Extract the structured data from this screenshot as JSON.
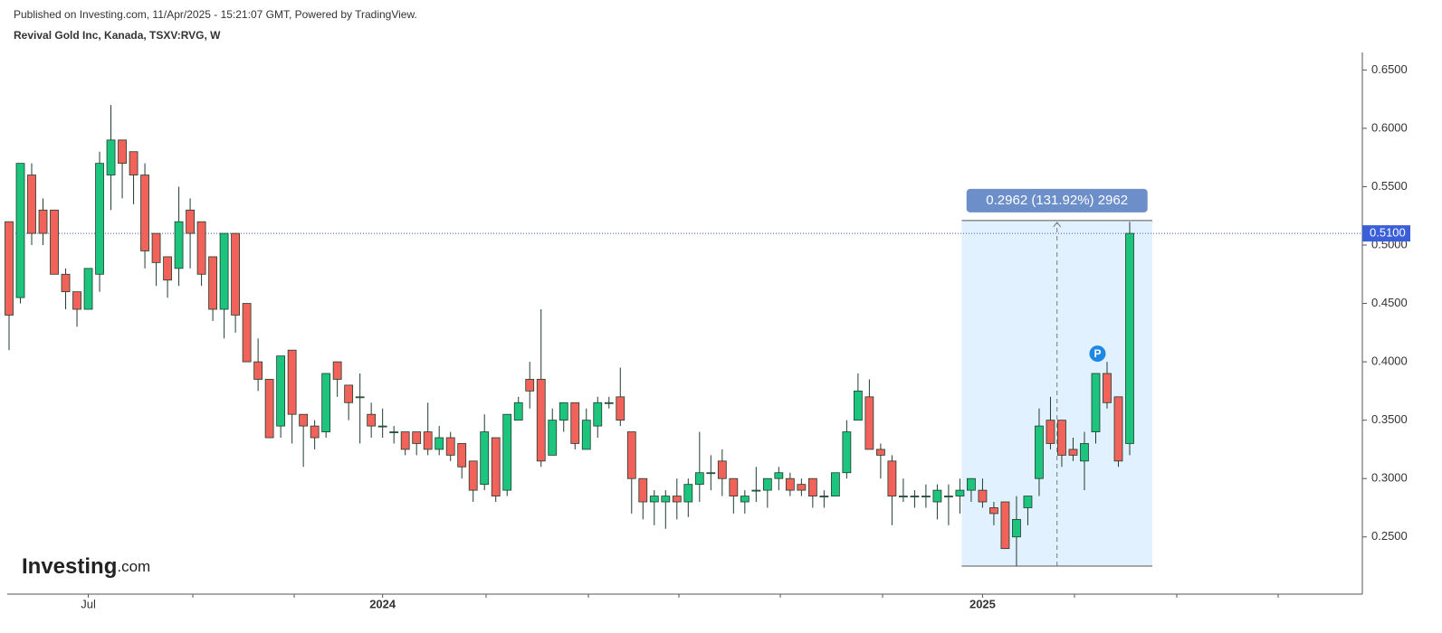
{
  "header": {
    "published": "Published on Investing.com, 11/Apr/2025 - 15:21:07 GMT, Powered by TradingView.",
    "symbol": "Revival Gold Inc, Kanada, TSXV:RVG, W"
  },
  "logo": {
    "name": "Investing",
    "suffix": ".com"
  },
  "chart_data": {
    "type": "candlestick",
    "categories": [
      null,
      null,
      null,
      null,
      null,
      null,
      null,
      "Jul",
      null,
      null,
      null,
      null,
      null,
      null,
      null,
      null,
      null,
      null,
      null,
      null,
      null,
      null,
      null,
      null,
      null,
      null,
      null,
      null,
      null,
      null,
      null,
      null,
      null,
      "2024",
      null,
      null,
      null,
      null,
      null,
      null,
      null,
      null,
      null,
      null,
      null,
      null,
      null,
      null,
      null,
      null,
      null,
      null,
      null,
      null,
      null,
      null,
      null,
      null,
      null,
      null,
      null,
      null,
      null,
      null,
      null,
      null,
      null,
      null,
      null,
      null,
      null,
      null,
      null,
      null,
      null,
      null,
      null,
      null,
      null,
      null,
      null,
      null,
      null,
      null,
      null,
      null,
      "2025",
      null,
      null,
      null,
      null,
      null,
      null,
      null,
      null,
      null,
      null,
      null,
      null,
      null
    ],
    "series": [
      {
        "up_color": "#1cc47e",
        "down_color": "#f0625a",
        "open": [
          0.52,
          0.455,
          0.56,
          0.53,
          0.53,
          0.475,
          0.46,
          0.445,
          0.475,
          0.56,
          0.59,
          0.58,
          0.56,
          0.51,
          0.49,
          0.48,
          0.53,
          0.52,
          0.49,
          0.445,
          0.51,
          0.45,
          0.4,
          0.385,
          0.345,
          0.41,
          0.355,
          0.345,
          0.34,
          0.4,
          0.38,
          0.37,
          0.355,
          0.345,
          0.34,
          0.34,
          0.34,
          0.34,
          0.325,
          0.335,
          0.33,
          0.315,
          0.295,
          0.335,
          0.29,
          0.35,
          0.385,
          0.385,
          0.32,
          0.35,
          0.365,
          0.325,
          0.345,
          0.365,
          0.37,
          0.34,
          0.3,
          0.28,
          0.28,
          0.285,
          0.28,
          0.295,
          0.305,
          0.315,
          0.3,
          0.28,
          0.29,
          0.29,
          0.3,
          0.3,
          0.295,
          0.3,
          0.285,
          0.285,
          0.305,
          0.35,
          0.37,
          0.325,
          0.315,
          0.285,
          0.285,
          0.285,
          0.28,
          0.285,
          0.285,
          0.29,
          0.29,
          0.275,
          0.28,
          0.25,
          0.275,
          0.3,
          0.35,
          0.35,
          0.325,
          0.315,
          0.34,
          0.39,
          0.37,
          0.33
        ],
        "high": [
          0.52,
          0.57,
          0.57,
          0.54,
          0.53,
          0.48,
          0.46,
          0.48,
          0.58,
          0.62,
          0.59,
          0.58,
          0.57,
          0.51,
          0.49,
          0.55,
          0.54,
          0.52,
          0.49,
          0.51,
          0.51,
          0.45,
          0.42,
          0.385,
          0.405,
          0.41,
          0.355,
          0.35,
          0.39,
          0.4,
          0.38,
          0.39,
          0.365,
          0.36,
          0.345,
          0.34,
          0.34,
          0.365,
          0.345,
          0.34,
          0.33,
          0.315,
          0.355,
          0.335,
          0.355,
          0.37,
          0.4,
          0.445,
          0.36,
          0.365,
          0.365,
          0.36,
          0.37,
          0.37,
          0.395,
          0.34,
          0.3,
          0.29,
          0.29,
          0.3,
          0.3,
          0.34,
          0.32,
          0.325,
          0.3,
          0.29,
          0.31,
          0.3,
          0.31,
          0.305,
          0.3,
          0.3,
          0.29,
          0.305,
          0.35,
          0.39,
          0.385,
          0.33,
          0.32,
          0.3,
          0.29,
          0.295,
          0.295,
          0.295,
          0.3,
          0.3,
          0.3,
          0.28,
          0.28,
          0.285,
          0.285,
          0.36,
          0.37,
          0.35,
          0.335,
          0.34,
          0.39,
          0.4,
          0.37,
          0.52
        ],
        "low": [
          0.41,
          0.45,
          0.5,
          0.5,
          0.475,
          0.445,
          0.43,
          0.445,
          0.46,
          0.53,
          0.54,
          0.535,
          0.48,
          0.465,
          0.455,
          0.465,
          0.48,
          0.465,
          0.435,
          0.42,
          0.425,
          0.4,
          0.375,
          0.335,
          0.335,
          0.33,
          0.31,
          0.325,
          0.335,
          0.37,
          0.35,
          0.33,
          0.335,
          0.335,
          0.33,
          0.32,
          0.32,
          0.32,
          0.32,
          0.315,
          0.3,
          0.28,
          0.29,
          0.28,
          0.285,
          0.35,
          0.36,
          0.31,
          0.32,
          0.34,
          0.325,
          0.325,
          0.335,
          0.36,
          0.345,
          0.27,
          0.265,
          0.26,
          0.257,
          0.265,
          0.267,
          0.28,
          0.29,
          0.285,
          0.27,
          0.27,
          0.28,
          0.275,
          0.29,
          0.285,
          0.285,
          0.275,
          0.275,
          0.285,
          0.3,
          0.35,
          0.325,
          0.3,
          0.26,
          0.28,
          0.275,
          0.275,
          0.265,
          0.26,
          0.27,
          0.28,
          0.275,
          0.26,
          0.24,
          0.225,
          0.26,
          0.285,
          0.325,
          0.31,
          0.315,
          0.29,
          0.33,
          0.36,
          0.31,
          0.32
        ],
        "close": [
          0.44,
          0.57,
          0.51,
          0.51,
          0.475,
          0.46,
          0.445,
          0.48,
          0.57,
          0.59,
          0.57,
          0.56,
          0.495,
          0.485,
          0.47,
          0.52,
          0.51,
          0.475,
          0.445,
          0.51,
          0.44,
          0.4,
          0.385,
          0.335,
          0.405,
          0.355,
          0.345,
          0.335,
          0.39,
          0.385,
          0.365,
          0.37,
          0.345,
          0.345,
          0.34,
          0.325,
          0.33,
          0.325,
          0.335,
          0.32,
          0.31,
          0.29,
          0.34,
          0.285,
          0.355,
          0.365,
          0.375,
          0.315,
          0.35,
          0.365,
          0.33,
          0.35,
          0.365,
          0.365,
          0.35,
          0.3,
          0.28,
          0.285,
          0.285,
          0.28,
          0.295,
          0.305,
          0.305,
          0.3,
          0.285,
          0.285,
          0.29,
          0.3,
          0.305,
          0.29,
          0.29,
          0.285,
          0.285,
          0.305,
          0.34,
          0.375,
          0.325,
          0.32,
          0.285,
          0.285,
          0.285,
          0.285,
          0.29,
          0.285,
          0.29,
          0.3,
          0.28,
          0.27,
          0.24,
          0.265,
          0.285,
          0.345,
          0.33,
          0.32,
          0.32,
          0.33,
          0.39,
          0.365,
          0.315,
          0.51
        ]
      }
    ],
    "ylim": [
      0.201,
      0.665
    ],
    "yticks": [
      {
        "value": 0.25,
        "label": "0.2500"
      },
      {
        "value": 0.3,
        "label": "0.3000"
      },
      {
        "value": 0.35,
        "label": "0.3500"
      },
      {
        "value": 0.4,
        "label": "0.4000"
      },
      {
        "value": 0.45,
        "label": "0.4500"
      },
      {
        "value": 0.5,
        "label": "0.5000"
      },
      {
        "value": 0.55,
        "label": "0.5500"
      },
      {
        "value": 0.6,
        "label": "0.6000"
      },
      {
        "value": 0.65,
        "label": "0.6500"
      }
    ],
    "price_line": {
      "value": 0.51,
      "label": "0.5100",
      "color": "#3b5fd9"
    },
    "measure": {
      "low": 0.225,
      "high": 0.521,
      "label": "0.2962 (131.92%) 2962"
    },
    "marker": {
      "label": "P",
      "value": 0.407
    }
  }
}
